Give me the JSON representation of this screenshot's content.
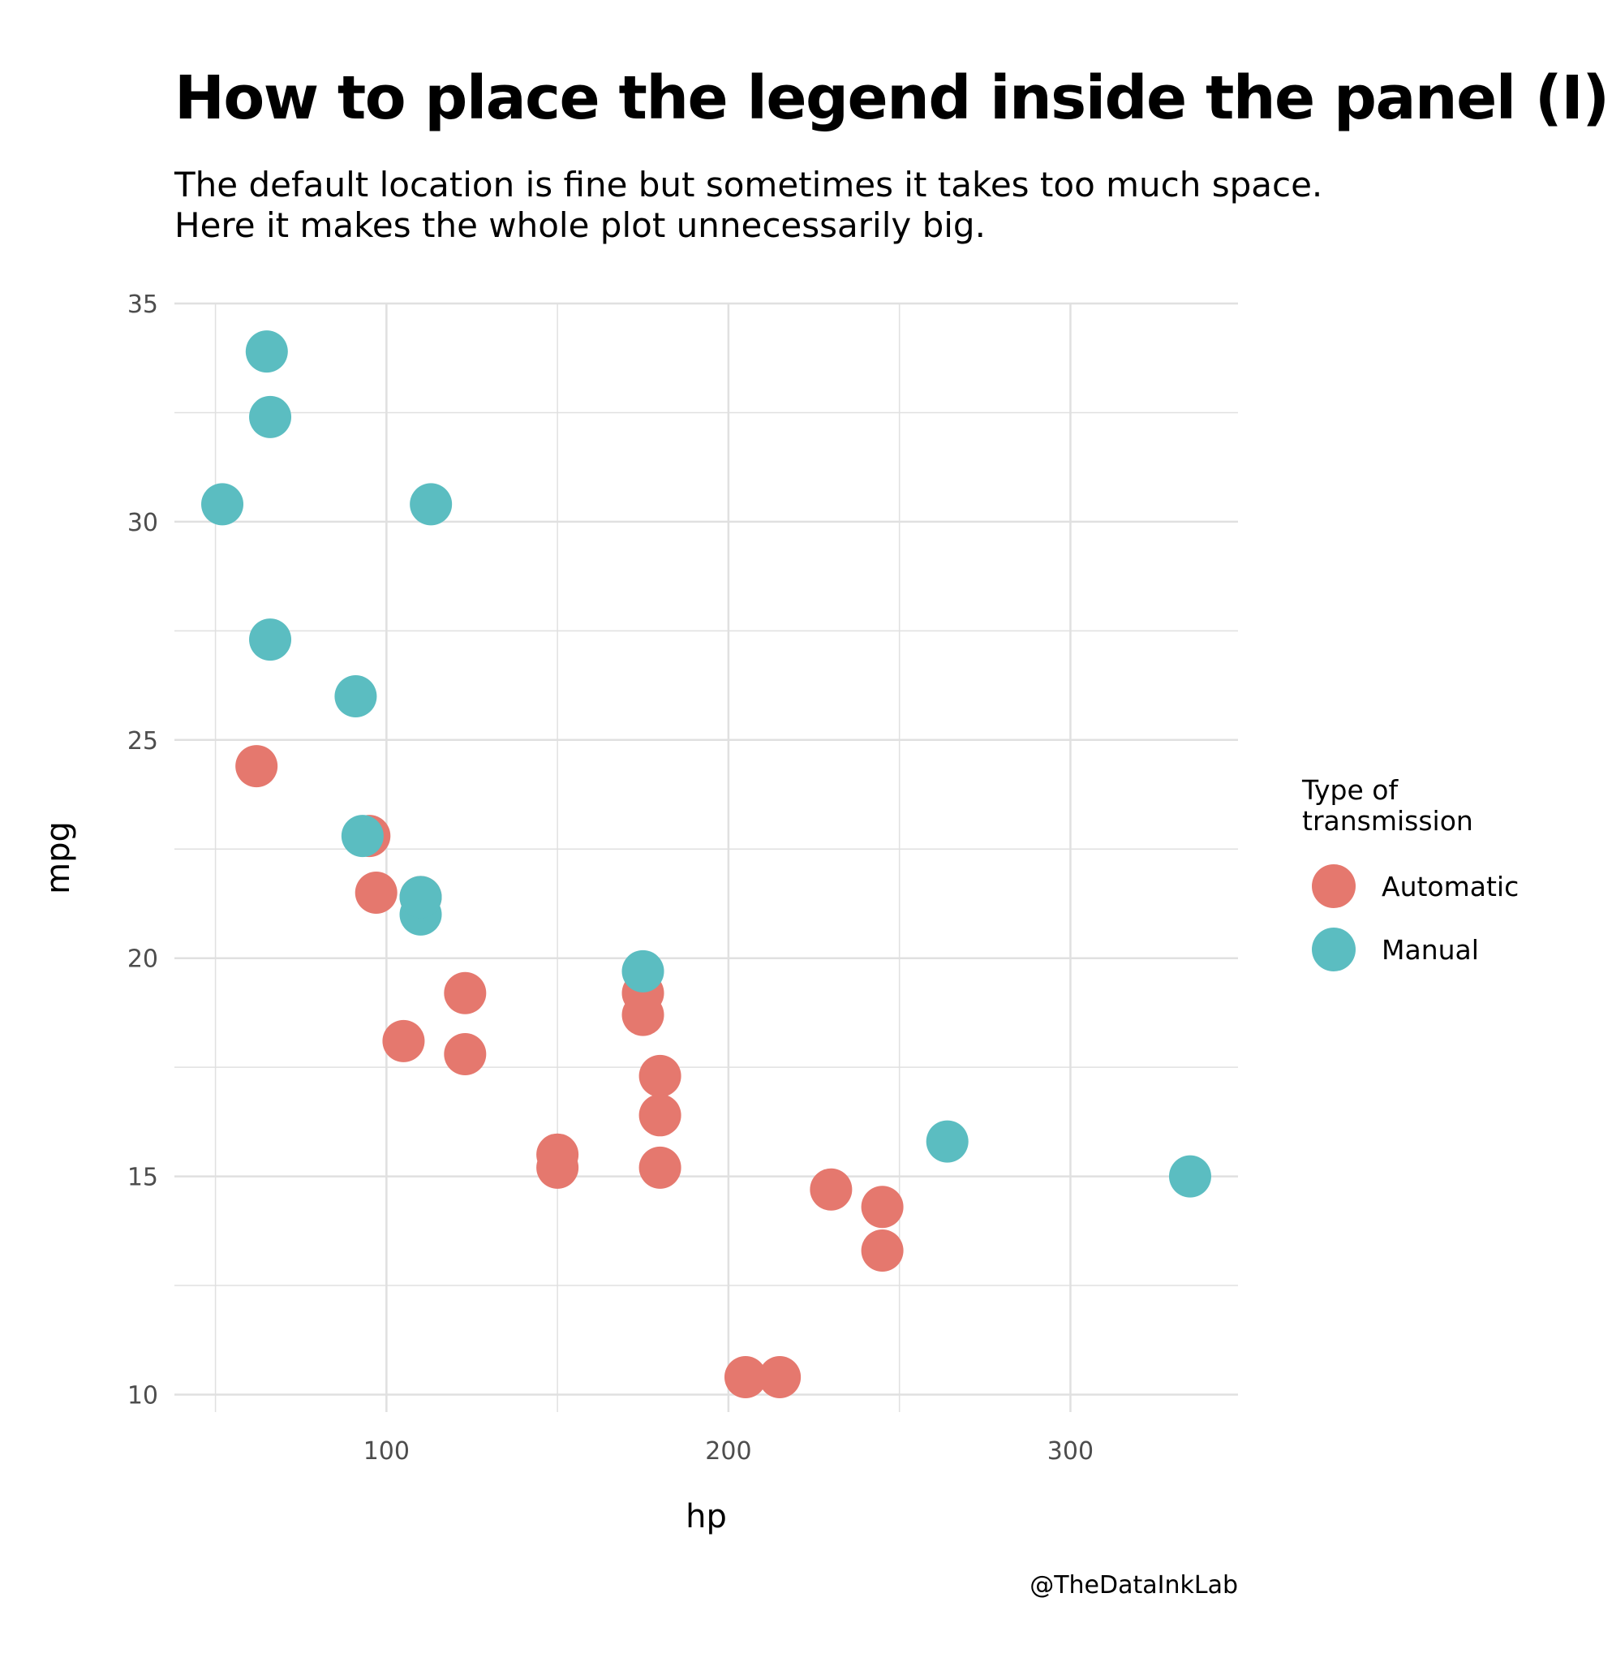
{
  "title": "How to place the legend inside the panel (I)",
  "subtitle": [
    "The default location is fine but sometimes it takes too much space.",
    "Here it makes the whole plot unnecessarily big."
  ],
  "caption": "@TheDataInkLab",
  "colors": {
    "automatic": "#E5786E",
    "manual": "#5BBDC1",
    "grid": "#e0e0e0",
    "background": "#ffffff"
  },
  "legend": {
    "title": "Type of transmission",
    "items": [
      {
        "key": "automatic",
        "label": "Automatic"
      },
      {
        "key": "manual",
        "label": "Manual"
      }
    ]
  },
  "chart_data": {
    "type": "scatter",
    "title": "How to place the legend inside the panel (I)",
    "xlabel": "hp",
    "ylabel": "mpg",
    "xlim": [
      38,
      349
    ],
    "ylim": [
      9.6,
      35.0
    ],
    "xticks": [
      100,
      200,
      300
    ],
    "yticks": [
      10,
      15,
      20,
      25,
      30,
      35
    ],
    "grid": true,
    "legend_position": "right",
    "series": [
      {
        "name": "Automatic",
        "key": "automatic",
        "points": [
          {
            "x": 62,
            "y": 24.4
          },
          {
            "x": 95,
            "y": 22.8
          },
          {
            "x": 97,
            "y": 21.5
          },
          {
            "x": 110,
            "y": 21.4
          },
          {
            "x": 105,
            "y": 18.1
          },
          {
            "x": 123,
            "y": 19.2
          },
          {
            "x": 123,
            "y": 17.8
          },
          {
            "x": 150,
            "y": 15.5
          },
          {
            "x": 150,
            "y": 15.2
          },
          {
            "x": 175,
            "y": 19.2
          },
          {
            "x": 175,
            "y": 18.7
          },
          {
            "x": 180,
            "y": 17.3
          },
          {
            "x": 180,
            "y": 16.4
          },
          {
            "x": 180,
            "y": 15.2
          },
          {
            "x": 205,
            "y": 10.4
          },
          {
            "x": 215,
            "y": 10.4
          },
          {
            "x": 230,
            "y": 14.7
          },
          {
            "x": 245,
            "y": 14.3
          },
          {
            "x": 245,
            "y": 13.3
          }
        ]
      },
      {
        "name": "Manual",
        "key": "manual",
        "points": [
          {
            "x": 52,
            "y": 30.4
          },
          {
            "x": 65,
            "y": 33.9
          },
          {
            "x": 66,
            "y": 32.4
          },
          {
            "x": 66,
            "y": 27.3
          },
          {
            "x": 91,
            "y": 26.0
          },
          {
            "x": 113,
            "y": 30.4
          },
          {
            "x": 93,
            "y": 22.8
          },
          {
            "x": 110,
            "y": 21.0
          },
          {
            "x": 110,
            "y": 21.4
          },
          {
            "x": 175,
            "y": 19.7
          },
          {
            "x": 264,
            "y": 15.8
          },
          {
            "x": 335,
            "y": 15.0
          }
        ]
      }
    ]
  }
}
